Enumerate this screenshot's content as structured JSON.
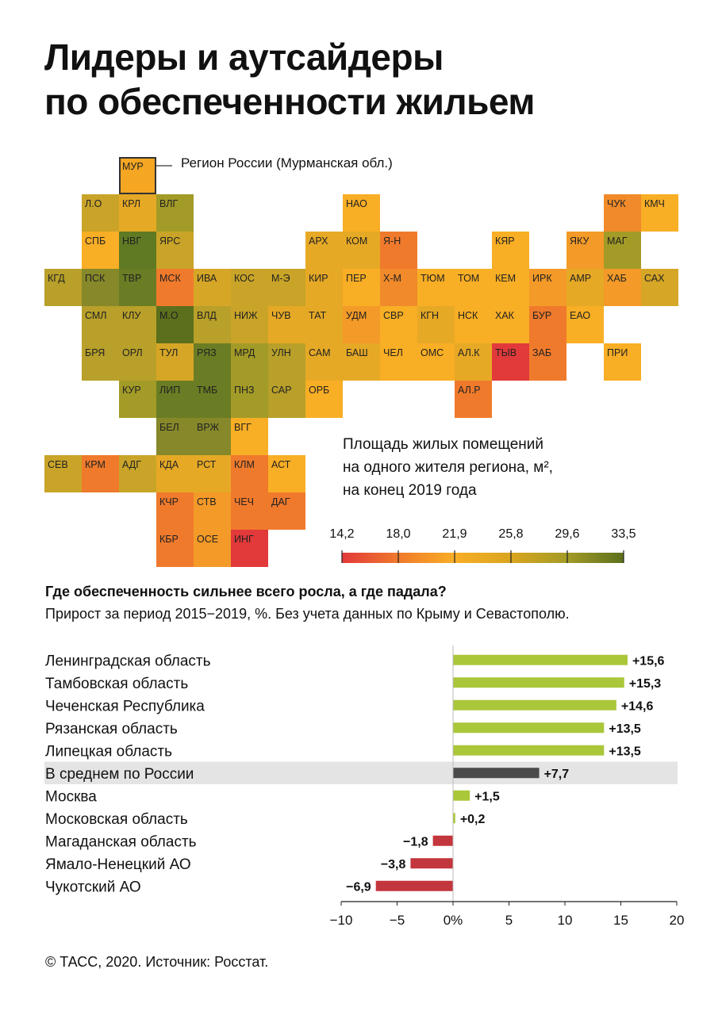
{
  "title": {
    "line1": "Лидеры и аутсайдеры",
    "line2": "по обеспеченности жильем"
  },
  "map": {
    "legend_note": "Регион России (Мурманская обл.)",
    "legend_title": {
      "line1": "Площадь жилых помещений",
      "line2": "на одного жителя региона, м²,",
      "line3": "на конец 2019 года"
    },
    "scale": {
      "ticks": [
        "14,2",
        "18,0",
        "21,9",
        "25,8",
        "29,6",
        "33,5"
      ],
      "colors": [
        "#e2393a",
        "#f07a2c",
        "#f8ae25",
        "#d9a51f",
        "#a39b27",
        "#5b6f1c"
      ]
    },
    "regions": [
      {
        "code": "МУР",
        "col": 3,
        "row": 0,
        "color": "#f5a623"
      },
      {
        "code": "Л.О",
        "col": 2,
        "row": 1,
        "color": "#c9a428"
      },
      {
        "code": "КРЛ",
        "col": 3,
        "row": 1,
        "color": "#e6a926"
      },
      {
        "code": "ВЛГ",
        "col": 4,
        "row": 1,
        "color": "#a39b27"
      },
      {
        "code": "НАО",
        "col": 9,
        "row": 1,
        "color": "#f8ae25"
      },
      {
        "code": "ЧУК",
        "col": 16,
        "row": 1,
        "color": "#f08a2a"
      },
      {
        "code": "КМЧ",
        "col": 17,
        "row": 1,
        "color": "#f8ae25"
      },
      {
        "code": "СПБ",
        "col": 2,
        "row": 2,
        "color": "#f8ae25"
      },
      {
        "code": "НВГ",
        "col": 3,
        "row": 2,
        "color": "#5f7a23"
      },
      {
        "code": "ЯРС",
        "col": 4,
        "row": 2,
        "color": "#c9a428"
      },
      {
        "code": "АРХ",
        "col": 8,
        "row": 2,
        "color": "#e6a926"
      },
      {
        "code": "КОМ",
        "col": 9,
        "row": 2,
        "color": "#e6a926"
      },
      {
        "code": "Я-Н",
        "col": 10,
        "row": 2,
        "color": "#f07a2c"
      },
      {
        "code": "КЯР",
        "col": 13,
        "row": 2,
        "color": "#f8ae25"
      },
      {
        "code": "ЯКУ",
        "col": 15,
        "row": 2,
        "color": "#f39a28"
      },
      {
        "code": "МАГ",
        "col": 16,
        "row": 2,
        "color": "#a39b27"
      },
      {
        "code": "КГД",
        "col": 1,
        "row": 3,
        "color": "#b8a02a"
      },
      {
        "code": "ПСК",
        "col": 2,
        "row": 3,
        "color": "#86882a"
      },
      {
        "code": "ТВР",
        "col": 3,
        "row": 3,
        "color": "#6a7d24"
      },
      {
        "code": "МСК",
        "col": 4,
        "row": 3,
        "color": "#f07a2c"
      },
      {
        "code": "ИВА",
        "col": 5,
        "row": 3,
        "color": "#d6a626"
      },
      {
        "code": "КОС",
        "col": 6,
        "row": 3,
        "color": "#c9a428"
      },
      {
        "code": "М-Э",
        "col": 7,
        "row": 3,
        "color": "#c9a428"
      },
      {
        "code": "КИР",
        "col": 8,
        "row": 3,
        "color": "#e6a926"
      },
      {
        "code": "ПЕР",
        "col": 9,
        "row": 3,
        "color": "#f8ae25"
      },
      {
        "code": "Х-М",
        "col": 10,
        "row": 3,
        "color": "#f08a2a"
      },
      {
        "code": "ТЮМ",
        "col": 11,
        "row": 3,
        "color": "#f8ae25"
      },
      {
        "code": "ТОМ",
        "col": 12,
        "row": 3,
        "color": "#f8ae25"
      },
      {
        "code": "КЕМ",
        "col": 13,
        "row": 3,
        "color": "#f8ae25"
      },
      {
        "code": "ИРК",
        "col": 14,
        "row": 3,
        "color": "#f39a28"
      },
      {
        "code": "АМР",
        "col": 15,
        "row": 3,
        "color": "#e6a926"
      },
      {
        "code": "ХАБ",
        "col": 16,
        "row": 3,
        "color": "#f39a28"
      },
      {
        "code": "САХ",
        "col": 17,
        "row": 3,
        "color": "#d6a626"
      },
      {
        "code": "СМЛ",
        "col": 2,
        "row": 4,
        "color": "#b8a02a"
      },
      {
        "code": "КЛУ",
        "col": 3,
        "row": 4,
        "color": "#b8a02a"
      },
      {
        "code": "М.О",
        "col": 4,
        "row": 4,
        "color": "#5b6f1c"
      },
      {
        "code": "ВЛД",
        "col": 5,
        "row": 4,
        "color": "#b8a02a"
      },
      {
        "code": "НИЖ",
        "col": 6,
        "row": 4,
        "color": "#c9a428"
      },
      {
        "code": "ЧУВ",
        "col": 7,
        "row": 4,
        "color": "#e6a926"
      },
      {
        "code": "ТАТ",
        "col": 8,
        "row": 4,
        "color": "#e6a926"
      },
      {
        "code": "УДМ",
        "col": 9,
        "row": 4,
        "color": "#f39a28"
      },
      {
        "code": "СВР",
        "col": 10,
        "row": 4,
        "color": "#f8ae25"
      },
      {
        "code": "КГН",
        "col": 11,
        "row": 4,
        "color": "#e6a926"
      },
      {
        "code": "НСК",
        "col": 12,
        "row": 4,
        "color": "#f8ae25"
      },
      {
        "code": "ХАК",
        "col": 13,
        "row": 4,
        "color": "#f8ae25"
      },
      {
        "code": "БУР",
        "col": 14,
        "row": 4,
        "color": "#f07a2c"
      },
      {
        "code": "ЕАО",
        "col": 15,
        "row": 4,
        "color": "#f8ae25"
      },
      {
        "code": "БРЯ",
        "col": 2,
        "row": 5,
        "color": "#b8a02a"
      },
      {
        "code": "ОРЛ",
        "col": 3,
        "row": 5,
        "color": "#b8a02a"
      },
      {
        "code": "ТУЛ",
        "col": 4,
        "row": 5,
        "color": "#d6a626"
      },
      {
        "code": "РЯЗ",
        "col": 5,
        "row": 5,
        "color": "#6a7d24"
      },
      {
        "code": "МРД",
        "col": 6,
        "row": 5,
        "color": "#a39b27"
      },
      {
        "code": "УЛН",
        "col": 7,
        "row": 5,
        "color": "#b8a02a"
      },
      {
        "code": "САМ",
        "col": 8,
        "row": 5,
        "color": "#e6a926"
      },
      {
        "code": "БАШ",
        "col": 9,
        "row": 5,
        "color": "#e6a926"
      },
      {
        "code": "ЧЕЛ",
        "col": 10,
        "row": 5,
        "color": "#f8ae25"
      },
      {
        "code": "ОМС",
        "col": 11,
        "row": 5,
        "color": "#f8ae25"
      },
      {
        "code": "АЛ.К",
        "col": 12,
        "row": 5,
        "color": "#e6a926"
      },
      {
        "code": "ТЫВ",
        "col": 13,
        "row": 5,
        "color": "#e2393a"
      },
      {
        "code": "ЗАБ",
        "col": 14,
        "row": 5,
        "color": "#f07a2c"
      },
      {
        "code": "ПРИ",
        "col": 16,
        "row": 5,
        "color": "#f8ae25"
      },
      {
        "code": "КУР",
        "col": 3,
        "row": 6,
        "color": "#a39b27"
      },
      {
        "code": "ЛИП",
        "col": 4,
        "row": 6,
        "color": "#6a7d24"
      },
      {
        "code": "ТМБ",
        "col": 5,
        "row": 6,
        "color": "#6a7d24"
      },
      {
        "code": "ПНЗ",
        "col": 6,
        "row": 6,
        "color": "#a39b27"
      },
      {
        "code": "САР",
        "col": 7,
        "row": 6,
        "color": "#b8a02a"
      },
      {
        "code": "ОРБ",
        "col": 8,
        "row": 6,
        "color": "#f8ae25"
      },
      {
        "code": "АЛ.Р",
        "col": 12,
        "row": 6,
        "color": "#f07a2c"
      },
      {
        "code": "БЕЛ",
        "col": 4,
        "row": 7,
        "color": "#86882a"
      },
      {
        "code": "ВРЖ",
        "col": 5,
        "row": 7,
        "color": "#86882a"
      },
      {
        "code": "ВГГ",
        "col": 6,
        "row": 7,
        "color": "#f8ae25"
      },
      {
        "code": "СЕВ",
        "col": 1,
        "row": 8,
        "color": "#c9a428"
      },
      {
        "code": "КРМ",
        "col": 2,
        "row": 8,
        "color": "#f07a2c"
      },
      {
        "code": "АДГ",
        "col": 3,
        "row": 8,
        "color": "#c9a428"
      },
      {
        "code": "КДА",
        "col": 4,
        "row": 8,
        "color": "#e6a926"
      },
      {
        "code": "РСТ",
        "col": 5,
        "row": 8,
        "color": "#e6a926"
      },
      {
        "code": "КЛМ",
        "col": 6,
        "row": 8,
        "color": "#f07a2c"
      },
      {
        "code": "АСТ",
        "col": 7,
        "row": 8,
        "color": "#f8ae25"
      },
      {
        "code": "КЧР",
        "col": 4,
        "row": 9,
        "color": "#f07a2c"
      },
      {
        "code": "СТВ",
        "col": 5,
        "row": 9,
        "color": "#f39a28"
      },
      {
        "code": "ЧЕЧ",
        "col": 6,
        "row": 9,
        "color": "#f07a2c"
      },
      {
        "code": "ДАГ",
        "col": 7,
        "row": 9,
        "color": "#f07a2c"
      },
      {
        "code": "КБР",
        "col": 4,
        "row": 10,
        "color": "#f07a2c"
      },
      {
        "code": "ОСЕ",
        "col": 5,
        "row": 10,
        "color": "#f39a28"
      },
      {
        "code": "ИНГ",
        "col": 6,
        "row": 10,
        "color": "#e2393a"
      }
    ]
  },
  "chart_header": {
    "heading": "Где обеспеченность сильнее всего росла, а где падала?",
    "subheading": "Прирост за период 2015−2019, %. Без учета данных по Крыму и Севастополю."
  },
  "chart_data": {
    "type": "bar",
    "orientation": "horizontal",
    "categories": [
      "Ленинградская область",
      "Тамбовская область",
      "Чеченская Республика",
      "Рязанская область",
      "Липецкая область",
      "В среднем по России",
      "Москва",
      "Московская область",
      "Магаданская область",
      "Ямало-Ненецкий АО",
      "Чукотский АО"
    ],
    "values": [
      15.6,
      15.3,
      14.6,
      13.5,
      13.5,
      7.7,
      1.5,
      0.2,
      -1.8,
      -3.8,
      -6.9
    ],
    "value_labels": [
      "+15,6",
      "+15,3",
      "+14,6",
      "+13,5",
      "+13,5",
      "+7,7",
      "+1,5",
      "+0,2",
      "−1,8",
      "−3,8",
      "−6,9"
    ],
    "highlight_index": 5,
    "xlim": [
      -10,
      20
    ],
    "xticks": [
      -10,
      -5,
      0,
      5,
      10,
      15,
      20
    ],
    "xtick_labels": [
      "−10",
      "−5",
      "0%",
      "5",
      "10",
      "15",
      "20"
    ],
    "colors": {
      "positive": "#aac73a",
      "average": "#4a4a4a",
      "negative": "#c3363d",
      "highlight_band": "#e4e4e4"
    }
  },
  "source": "© ТАСС, 2020. Источник: Росстат."
}
